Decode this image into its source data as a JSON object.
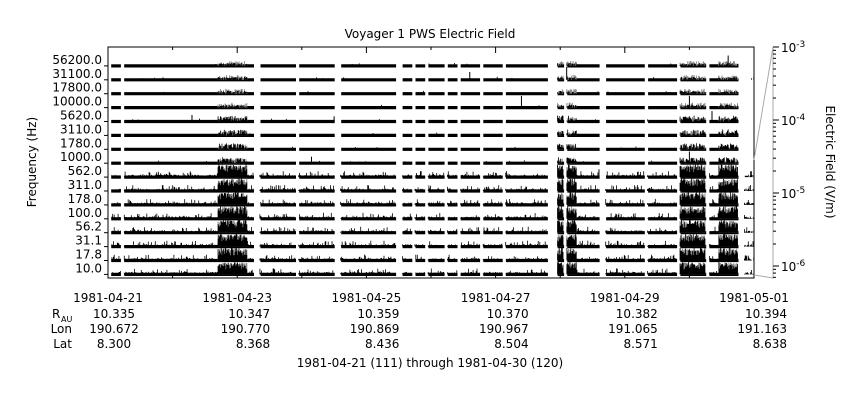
{
  "chart_data": {
    "type": "spectrogram-lines",
    "title": "Voyager 1 PWS Electric Field",
    "ylabel": "Frequency (Hz)",
    "y2label": "Electric Field (V/m)",
    "xlabel": "1981-04-21 (111) through 1981-04-30 (120)",
    "channels": [
      "56200.0",
      "31100.0",
      "17800.0",
      "10000.0",
      "5620.0",
      "3110.0",
      "1780.0",
      "1000.0",
      "562.0",
      "311.0",
      "178.0",
      "100.0",
      "56.2",
      "31.1",
      "17.8",
      "10.0"
    ],
    "x_ticks": [
      "1981-04-21",
      "1981-04-23",
      "1981-04-25",
      "1981-04-27",
      "1981-04-29",
      "1981-05-01"
    ],
    "x_range_days": [
      0,
      10
    ],
    "y2_range": [
      "1e-6",
      "1e-3"
    ],
    "y2_scale": "log",
    "y2_ticks": [
      {
        "base": "10",
        "exp": "-3"
      },
      {
        "base": "10",
        "exp": "-4"
      },
      {
        "base": "10",
        "exp": "-5"
      },
      {
        "base": "10",
        "exp": "-6"
      }
    ],
    "ephemeris": {
      "labels": {
        "r_main": "R",
        "r_sub": "AU",
        "lon": "Lon",
        "lat": "Lat"
      },
      "r_au": [
        "10.335",
        "10.347",
        "10.359",
        "10.370",
        "10.382",
        "10.394"
      ],
      "lon": [
        "190.672",
        "190.770",
        "190.869",
        "190.967",
        "191.065",
        "191.163"
      ],
      "lat": [
        "8.300",
        "8.368",
        "8.436",
        "8.504",
        "8.571",
        "8.638"
      ]
    },
    "data_gaps_days": [
      [
        0.0,
        0.05
      ],
      [
        0.2,
        0.25
      ],
      [
        2.25,
        2.35
      ],
      [
        2.9,
        2.95
      ],
      [
        3.5,
        3.6
      ],
      [
        4.45,
        4.55
      ],
      [
        4.7,
        4.75
      ],
      [
        4.9,
        4.95
      ],
      [
        5.2,
        5.25
      ],
      [
        5.4,
        5.45
      ],
      [
        5.75,
        5.8
      ],
      [
        6.1,
        6.15
      ],
      [
        6.8,
        6.95
      ],
      [
        7.05,
        7.1
      ],
      [
        7.6,
        7.7
      ],
      [
        8.3,
        8.35
      ],
      [
        8.8,
        8.85
      ],
      [
        9.25,
        9.3
      ],
      [
        9.75,
        9.85
      ]
    ],
    "intense_intervals_days": [
      [
        1.7,
        2.15
      ],
      [
        6.85,
        7.25
      ],
      [
        8.85,
        9.25
      ],
      [
        9.45,
        9.75
      ]
    ],
    "spikes": [
      {
        "day": 6.4,
        "channel": "10000.0",
        "level": 0.9
      },
      {
        "day": 7.1,
        "channel": "31100.0",
        "level": 1.0
      },
      {
        "day": 9.0,
        "channel": "10000.0",
        "level": 0.9
      },
      {
        "day": 5.6,
        "channel": "31100.0",
        "level": 0.6
      },
      {
        "day": 3.15,
        "channel": "1000.0",
        "level": 0.5
      },
      {
        "day": 3.5,
        "channel": "5620.0",
        "level": 0.4
      },
      {
        "day": 1.3,
        "channel": "5620.0",
        "level": 0.5
      },
      {
        "day": 9.35,
        "channel": "5620.0",
        "level": 0.8
      },
      {
        "day": 9.0,
        "channel": "1000.0",
        "level": 0.9
      },
      {
        "day": 9.6,
        "channel": "56200.0",
        "level": 0.8
      },
      {
        "day": 7.6,
        "channel": "562.0",
        "level": 0.6
      }
    ]
  }
}
